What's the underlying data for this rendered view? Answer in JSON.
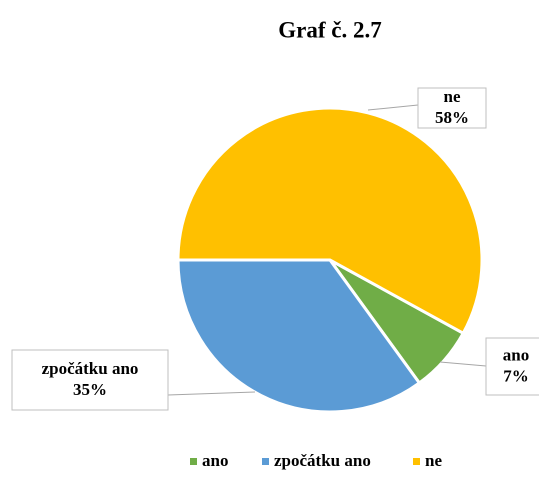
{
  "chart_data": {
    "type": "pie",
    "title": "Graf č. 2.7",
    "categories": [
      "ano",
      "zpočátku ano",
      "ne"
    ],
    "values": [
      7,
      35,
      58
    ],
    "value_labels": [
      "7%",
      "35%",
      "58%"
    ],
    "colors": [
      "#70ad47",
      "#5b9bd5",
      "#ffc000"
    ],
    "legend": "bottom"
  }
}
